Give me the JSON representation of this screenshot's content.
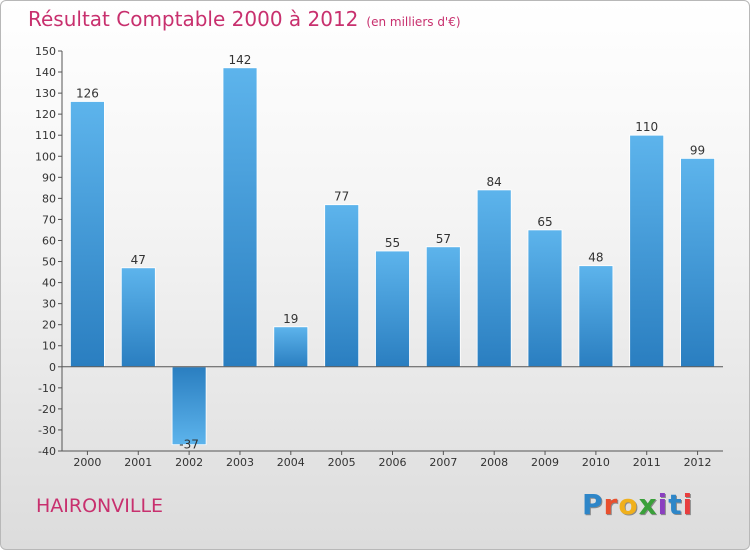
{
  "title": "Résultat Comptable 2000 à 2012",
  "subtitle": "(en milliers d'€)",
  "commune": "HAIRONVILLE",
  "logo": {
    "text": "Proxiti",
    "colors": [
      "#2e86c8",
      "#e8502e",
      "#f0b01c",
      "#3aa03a",
      "#8a3fc0",
      "#2e86c8",
      "#e83e3e"
    ]
  },
  "colors": {
    "title": "#c8306e",
    "bar_light": "#5db4ec",
    "bar_dark": "#2a7ec0",
    "axis": "#555555"
  },
  "chart_data": {
    "type": "bar",
    "title": "Résultat Comptable 2000 à 2012",
    "subtitle": "(en milliers d'€)",
    "xlabel": "",
    "ylabel": "",
    "categories": [
      "2000",
      "2001",
      "2002",
      "2003",
      "2004",
      "2005",
      "2006",
      "2007",
      "2008",
      "2009",
      "2010",
      "2011",
      "2012"
    ],
    "values": [
      126,
      47,
      -37,
      142,
      19,
      77,
      55,
      57,
      84,
      65,
      48,
      110,
      99
    ],
    "ylim": [
      -40,
      150
    ],
    "ytick_step": 10,
    "grid": false,
    "legend": "none"
  }
}
